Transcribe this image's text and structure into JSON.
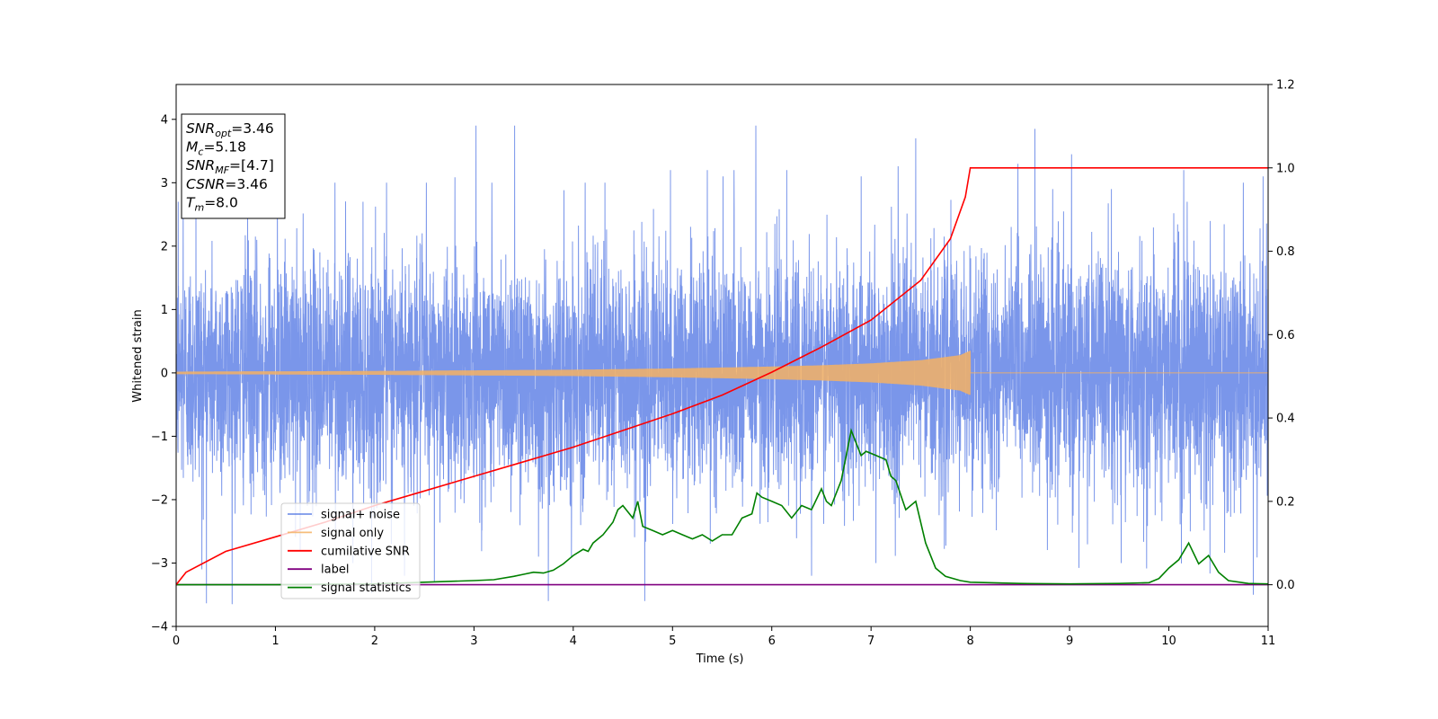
{
  "chart_data": {
    "type": "line",
    "xlabel": "Time (s)",
    "ylabel": "Whitened strain",
    "xlim": [
      0,
      11
    ],
    "ylim": [
      -4,
      4.55
    ],
    "y2lim": [
      -0.1,
      1.2
    ],
    "xticks": [
      0,
      1,
      2,
      3,
      4,
      5,
      6,
      7,
      8,
      9,
      10,
      11
    ],
    "yticks": [
      -4,
      -3,
      -2,
      -1,
      0,
      1,
      2,
      3,
      4
    ],
    "y2ticks": [
      0.0,
      0.2,
      0.4,
      0.6,
      0.8,
      1.0,
      1.2
    ],
    "legend": {
      "placement": "lower-left",
      "entries": [
        "signal+ noise",
        "signal only",
        "cumilative SNR",
        "label",
        "signal statistics"
      ]
    },
    "info_box": {
      "lines": [
        {
          "base": "SNR",
          "sub": "opt",
          "value": "=3.46"
        },
        {
          "base": "M",
          "sub": "c",
          "value": "=5.18"
        },
        {
          "base": "SNR",
          "sub": "MF",
          "value": "=[4.7]"
        },
        {
          "base": "CSNR",
          "sub": "",
          "value": "=3.46"
        },
        {
          "base": "T",
          "sub": "m",
          "value": "=8.0"
        }
      ]
    },
    "series": [
      {
        "name": "signal+ noise",
        "axis": "left",
        "color": "#4169e1",
        "description_type": "noise",
        "std": 0.9,
        "x_range": [
          0,
          11
        ],
        "spikes": [
          [
            0.02,
            2.7
          ],
          [
            0.07,
            3.0
          ],
          [
            0.2,
            2.9
          ],
          [
            0.26,
            -3.1
          ],
          [
            0.72,
            2.8
          ],
          [
            1.02,
            3.1
          ],
          [
            1.25,
            -2.8
          ],
          [
            1.6,
            3.0
          ],
          [
            1.78,
            -3.0
          ],
          [
            2.12,
            3.0
          ],
          [
            2.3,
            -3.2
          ],
          [
            2.52,
            3.0
          ],
          [
            2.6,
            -3.3
          ],
          [
            3.02,
            3.9
          ],
          [
            3.18,
            3.0
          ],
          [
            3.41,
            3.9
          ],
          [
            3.65,
            -2.9
          ],
          [
            3.75,
            -3.6
          ],
          [
            4.12,
            3.0
          ],
          [
            4.32,
            3.0
          ],
          [
            4.72,
            -3.6
          ],
          [
            4.98,
            3.2
          ],
          [
            5.35,
            3.2
          ],
          [
            5.51,
            3.1
          ],
          [
            5.62,
            3.2
          ],
          [
            5.84,
            3.9
          ],
          [
            6.15,
            3.2
          ],
          [
            6.4,
            -3.2
          ],
          [
            6.9,
            3.1
          ],
          [
            7.05,
            -3.0
          ],
          [
            7.45,
            3.7
          ],
          [
            8.48,
            3.3
          ],
          [
            8.65,
            3.85
          ],
          [
            8.83,
            2.9
          ],
          [
            9.02,
            3.45
          ],
          [
            9.42,
            2.9
          ],
          [
            9.52,
            -3.0
          ],
          [
            10.15,
            3.2
          ],
          [
            10.75,
            3.0
          ],
          [
            10.85,
            -3.5
          ],
          [
            10.95,
            3.1
          ]
        ]
      },
      {
        "name": "signal only",
        "axis": "left",
        "color": "#f4b164",
        "description_type": "chirp",
        "amplitude_points": [
          [
            0,
            0.02
          ],
          [
            2,
            0.03
          ],
          [
            4,
            0.05
          ],
          [
            5,
            0.07
          ],
          [
            6,
            0.1
          ],
          [
            6.5,
            0.12
          ],
          [
            7,
            0.15
          ],
          [
            7.5,
            0.2
          ],
          [
            7.9,
            0.28
          ],
          [
            8.0,
            0.35
          ]
        ],
        "end": 8.0
      },
      {
        "name": "cumilative SNR",
        "axis": "right",
        "color": "#ff0000",
        "x": [
          0,
          0.1,
          0.5,
          1,
          1.5,
          2,
          2.5,
          3,
          3.5,
          4,
          4.5,
          5,
          5.5,
          6,
          6.5,
          7,
          7.5,
          7.8,
          7.95,
          8.0,
          11
        ],
        "values": [
          0.0,
          0.03,
          0.08,
          0.115,
          0.15,
          0.19,
          0.225,
          0.26,
          0.295,
          0.33,
          0.37,
          0.41,
          0.455,
          0.51,
          0.57,
          0.635,
          0.73,
          0.83,
          0.93,
          1.0,
          1.0
        ]
      },
      {
        "name": "label",
        "axis": "right",
        "color": "#800080",
        "x": [
          0,
          11
        ],
        "values": [
          0,
          0
        ]
      },
      {
        "name": "signal statistics",
        "axis": "right",
        "color": "#008000",
        "x": [
          0,
          1,
          2,
          2.5,
          3,
          3.2,
          3.4,
          3.5,
          3.6,
          3.7,
          3.8,
          3.9,
          4.0,
          4.1,
          4.15,
          4.2,
          4.3,
          4.4,
          4.45,
          4.5,
          4.6,
          4.65,
          4.7,
          4.8,
          4.9,
          5.0,
          5.1,
          5.2,
          5.3,
          5.4,
          5.5,
          5.6,
          5.7,
          5.8,
          5.85,
          5.9,
          6.0,
          6.1,
          6.2,
          6.3,
          6.4,
          6.5,
          6.55,
          6.6,
          6.7,
          6.8,
          6.9,
          6.95,
          7.05,
          7.15,
          7.2,
          7.25,
          7.35,
          7.45,
          7.55,
          7.65,
          7.75,
          7.9,
          8.0,
          8.5,
          9.0,
          9.5,
          9.8,
          9.9,
          10.0,
          10.1,
          10.2,
          10.3,
          10.4,
          10.5,
          10.6,
          10.8,
          11.0
        ],
        "values": [
          0.0,
          0.0,
          0.002,
          0.006,
          0.01,
          0.012,
          0.02,
          0.025,
          0.03,
          0.028,
          0.035,
          0.05,
          0.07,
          0.085,
          0.08,
          0.1,
          0.12,
          0.15,
          0.18,
          0.19,
          0.16,
          0.2,
          0.14,
          0.13,
          0.12,
          0.13,
          0.12,
          0.11,
          0.12,
          0.105,
          0.12,
          0.12,
          0.16,
          0.17,
          0.22,
          0.21,
          0.2,
          0.19,
          0.16,
          0.19,
          0.18,
          0.23,
          0.2,
          0.19,
          0.25,
          0.37,
          0.31,
          0.32,
          0.31,
          0.3,
          0.26,
          0.25,
          0.18,
          0.2,
          0.1,
          0.04,
          0.02,
          0.01,
          0.006,
          0.003,
          0.002,
          0.003,
          0.005,
          0.015,
          0.04,
          0.06,
          0.1,
          0.05,
          0.07,
          0.03,
          0.01,
          0.003,
          0.002
        ]
      }
    ]
  }
}
